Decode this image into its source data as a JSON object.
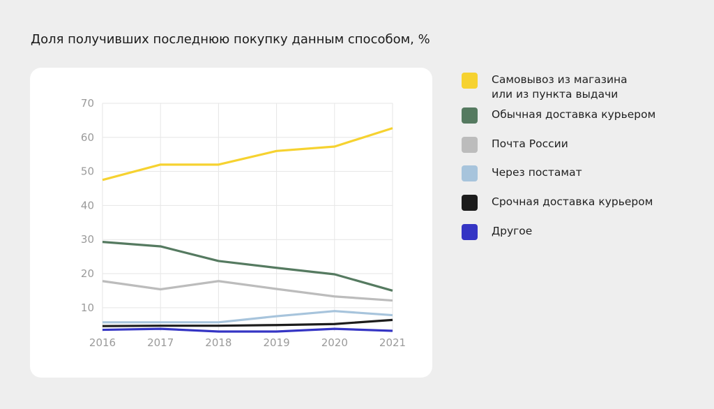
{
  "title": "Доля получивших последнюю покупку данным способом, %",
  "chart_data": {
    "type": "line",
    "x": [
      "2016",
      "2017",
      "2018",
      "2019",
      "2020",
      "2021"
    ],
    "ylim": [
      3,
      70
    ],
    "yticks": [
      10,
      20,
      30,
      40,
      50,
      60,
      70
    ],
    "grid": true,
    "legend_position": "right",
    "series": [
      {
        "name_lines": [
          "Самовывоз из магазина",
          "или из пункта выдачи"
        ],
        "color": "#f6d230",
        "values": [
          47.5,
          52,
          52,
          56,
          57.3,
          62.7
        ]
      },
      {
        "name_lines": [
          "Обычная доставка курьером"
        ],
        "color": "#557a60",
        "values": [
          29.3,
          28,
          23.7,
          21.7,
          19.8,
          15
        ]
      },
      {
        "name_lines": [
          "Почта России"
        ],
        "color": "#bcbcbc",
        "values": [
          17.8,
          15.4,
          17.8,
          15.5,
          13.3,
          12.1
        ]
      },
      {
        "name_lines": [
          "Через постамат"
        ],
        "color": "#a7c4dc",
        "values": [
          5.7,
          5.7,
          5.7,
          7.5,
          9,
          7.8
        ]
      },
      {
        "name_lines": [
          "Срочная доставка курьером"
        ],
        "color": "#1c1c1c",
        "values": [
          4.6,
          4.7,
          4.7,
          4.9,
          5.2,
          6.4
        ]
      },
      {
        "name_lines": [
          "Другое"
        ],
        "color": "#3535c4",
        "values": [
          3.5,
          3.8,
          3,
          3,
          3.8,
          3.2
        ]
      }
    ]
  }
}
